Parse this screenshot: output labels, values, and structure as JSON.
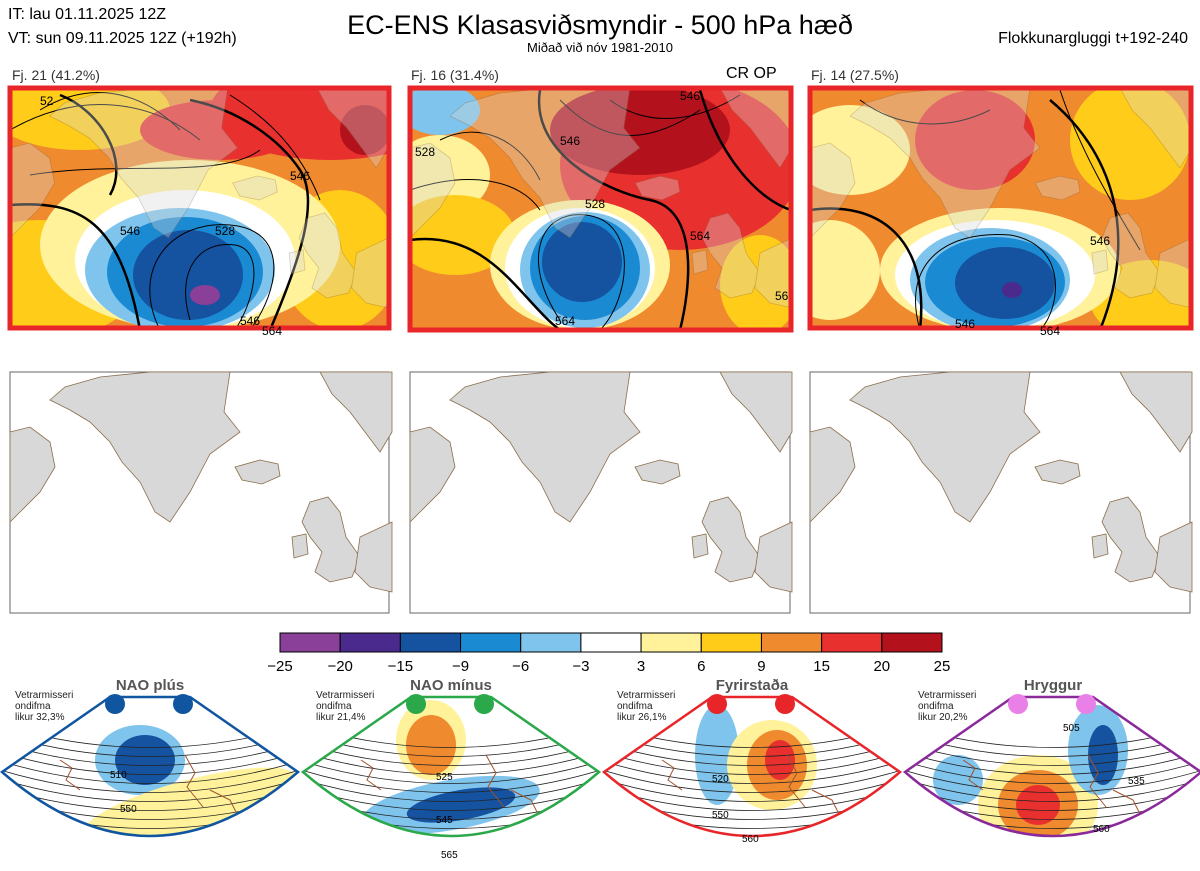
{
  "header": {
    "it": "IT: lau 01.11.2025 12Z",
    "vt": "VT: sun 09.11.2025 12Z  (+192h)",
    "title": "EC-ENS Klasasviðsmyndir - 500 hPa hæð",
    "subtitle": "Miðað við nóv 1981-2010",
    "window": "Flokkunargluggi t+192-240"
  },
  "panels": [
    {
      "label": "Fj. 21 (41.2%)",
      "contours": [
        "52",
        "546",
        "528",
        "546",
        "546",
        "564"
      ],
      "border": "#e8262a"
    },
    {
      "label": "Fj. 16 (31.4%)",
      "tag": "CR OP",
      "contours": [
        "528",
        "546",
        "528",
        "546",
        "564",
        "564",
        "56"
      ],
      "border": "#e8262a"
    },
    {
      "label": "Fj. 14 (27.5%)",
      "contours": [
        "546",
        "546",
        "564"
      ],
      "border": "#e8262a"
    }
  ],
  "colorbar": {
    "ticks": [
      "−25",
      "−20",
      "−15",
      "−9",
      "−6",
      "−3",
      "3",
      "6",
      "9",
      "15",
      "20",
      "25"
    ],
    "colors": [
      "#8a3f98",
      "#4b2a8e",
      "#1552a0",
      "#1a8ad3",
      "#7fc4ec",
      "#ffffff",
      "#fff29a",
      "#ffcc1a",
      "#f08a2e",
      "#e8302e",
      "#b3121c"
    ]
  },
  "regimes": [
    {
      "name": "NAO plús",
      "clim": [
        "Vetrarmisseri",
        "ondifma",
        "likur 32,3%"
      ],
      "contours": [
        "510",
        "550"
      ],
      "color": "#1055a0",
      "dot": "#1055a0"
    },
    {
      "name": "NAO mínus",
      "clim": [
        "Vetrarmisseri",
        "ondifma",
        "likur 21,4%"
      ],
      "contours": [
        "525",
        "545",
        "565"
      ],
      "color": "#2aa84a",
      "dot": "#2aa84a"
    },
    {
      "name": "Fyrirstaða",
      "clim": [
        "Vetrarmisseri",
        "ondifma",
        "likur 26,1%"
      ],
      "contours": [
        "520",
        "550",
        "560"
      ],
      "color": "#e8262a",
      "dot": "#e8262a"
    },
    {
      "name": "Hryggur",
      "clim": [
        "Vetrarmisseri",
        "ondifma",
        "likur 20,2%"
      ],
      "contours": [
        "505",
        "535",
        "560"
      ],
      "color": "#8a2a9a",
      "dot": "#e880e8"
    }
  ],
  "chart_data": {
    "type": "heatmap",
    "title": "EC-ENS Klasasviðsmyndir - 500 hPa hæð",
    "subtitle": "Miðað við nóv 1981-2010",
    "colorbar_levels": [
      -25,
      -20,
      -15,
      -9,
      -6,
      -3,
      3,
      6,
      9,
      15,
      20,
      25
    ],
    "clusters": [
      {
        "name": "Fj. 21",
        "members": 21,
        "probability_pct": 41.2
      },
      {
        "name": "Fj. 16",
        "members": 16,
        "probability_pct": 31.4,
        "tag": "CR OP"
      },
      {
        "name": "Fj. 14",
        "members": 14,
        "probability_pct": 27.5
      }
    ],
    "climatological_regimes": [
      {
        "name": "NAO plús",
        "probability_pct": 32.3
      },
      {
        "name": "NAO mínus",
        "probability_pct": 21.4
      },
      {
        "name": "Fyrirstaða",
        "probability_pct": 26.1
      },
      {
        "name": "Hryggur",
        "probability_pct": 20.2
      }
    ]
  }
}
